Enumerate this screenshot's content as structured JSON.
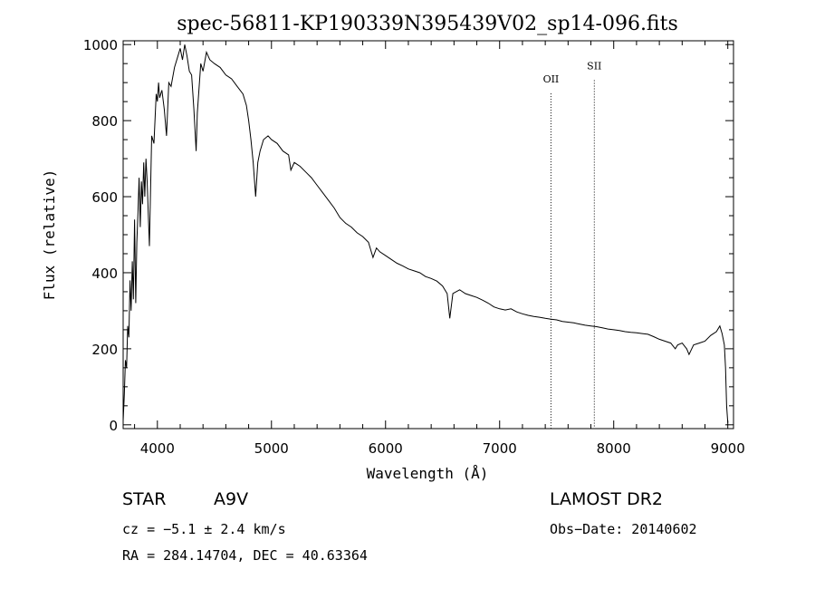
{
  "chart_data": {
    "type": "line",
    "title": "spec-56811-KP190339N395439V02_sp14-096.fits",
    "xlabel": "Wavelength (Å)",
    "ylabel": "Flux (relative)",
    "xlim": [
      3700,
      9050
    ],
    "ylim": [
      -10,
      1010
    ],
    "xticks": [
      4000,
      5000,
      6000,
      7000,
      8000,
      9000
    ],
    "yticks": [
      0,
      200,
      400,
      600,
      800,
      1000
    ],
    "grid": false,
    "series": [
      {
        "values": [
          [
            3700,
            10
          ],
          [
            3710,
            80
          ],
          [
            3720,
            170
          ],
          [
            3730,
            150
          ],
          [
            3740,
            260
          ],
          [
            3750,
            230
          ],
          [
            3760,
            380
          ],
          [
            3770,
            300
          ],
          [
            3780,
            430
          ],
          [
            3790,
            330
          ],
          [
            3800,
            540
          ],
          [
            3810,
            320
          ],
          [
            3820,
            480
          ],
          [
            3830,
            560
          ],
          [
            3840,
            650
          ],
          [
            3850,
            520
          ],
          [
            3860,
            640
          ],
          [
            3870,
            580
          ],
          [
            3880,
            690
          ],
          [
            3890,
            600
          ],
          [
            3900,
            700
          ],
          [
            3910,
            640
          ],
          [
            3930,
            470
          ],
          [
            3950,
            760
          ],
          [
            3970,
            740
          ],
          [
            3990,
            870
          ],
          [
            4000,
            850
          ],
          [
            4010,
            900
          ],
          [
            4020,
            860
          ],
          [
            4040,
            880
          ],
          [
            4060,
            830
          ],
          [
            4080,
            760
          ],
          [
            4100,
            900
          ],
          [
            4120,
            890
          ],
          [
            4150,
            940
          ],
          [
            4180,
            970
          ],
          [
            4200,
            990
          ],
          [
            4220,
            960
          ],
          [
            4240,
            1000
          ],
          [
            4260,
            970
          ],
          [
            4280,
            930
          ],
          [
            4300,
            920
          ],
          [
            4320,
            830
          ],
          [
            4340,
            720
          ],
          [
            4350,
            820
          ],
          [
            4380,
            950
          ],
          [
            4400,
            930
          ],
          [
            4430,
            980
          ],
          [
            4460,
            960
          ],
          [
            4500,
            950
          ],
          [
            4550,
            940
          ],
          [
            4600,
            920
          ],
          [
            4650,
            910
          ],
          [
            4700,
            890
          ],
          [
            4750,
            870
          ],
          [
            4780,
            840
          ],
          [
            4800,
            800
          ],
          [
            4820,
            750
          ],
          [
            4840,
            690
          ],
          [
            4861,
            600
          ],
          [
            4880,
            690
          ],
          [
            4900,
            720
          ],
          [
            4930,
            750
          ],
          [
            4970,
            760
          ],
          [
            5000,
            750
          ],
          [
            5050,
            740
          ],
          [
            5100,
            720
          ],
          [
            5150,
            710
          ],
          [
            5170,
            670
          ],
          [
            5200,
            690
          ],
          [
            5250,
            680
          ],
          [
            5300,
            665
          ],
          [
            5350,
            650
          ],
          [
            5400,
            630
          ],
          [
            5450,
            610
          ],
          [
            5500,
            590
          ],
          [
            5550,
            570
          ],
          [
            5600,
            545
          ],
          [
            5650,
            530
          ],
          [
            5700,
            520
          ],
          [
            5750,
            505
          ],
          [
            5800,
            495
          ],
          [
            5850,
            480
          ],
          [
            5890,
            440
          ],
          [
            5920,
            465
          ],
          [
            5950,
            455
          ],
          [
            6000,
            445
          ],
          [
            6050,
            435
          ],
          [
            6100,
            425
          ],
          [
            6150,
            418
          ],
          [
            6200,
            410
          ],
          [
            6250,
            405
          ],
          [
            6300,
            400
          ],
          [
            6350,
            390
          ],
          [
            6400,
            385
          ],
          [
            6450,
            378
          ],
          [
            6500,
            365
          ],
          [
            6540,
            345
          ],
          [
            6563,
            280
          ],
          [
            6590,
            345
          ],
          [
            6650,
            355
          ],
          [
            6700,
            345
          ],
          [
            6750,
            340
          ],
          [
            6800,
            335
          ],
          [
            6850,
            328
          ],
          [
            6900,
            320
          ],
          [
            6950,
            310
          ],
          [
            7000,
            305
          ],
          [
            7050,
            302
          ],
          [
            7100,
            305
          ],
          [
            7150,
            297
          ],
          [
            7200,
            292
          ],
          [
            7250,
            288
          ],
          [
            7300,
            285
          ],
          [
            7350,
            283
          ],
          [
            7400,
            280
          ],
          [
            7450,
            278
          ],
          [
            7500,
            276
          ],
          [
            7550,
            272
          ],
          [
            7600,
            270
          ],
          [
            7650,
            268
          ],
          [
            7700,
            265
          ],
          [
            7750,
            262
          ],
          [
            7800,
            260
          ],
          [
            7850,
            258
          ],
          [
            7900,
            255
          ],
          [
            7950,
            252
          ],
          [
            8000,
            250
          ],
          [
            8050,
            248
          ],
          [
            8100,
            245
          ],
          [
            8150,
            243
          ],
          [
            8200,
            242
          ],
          [
            8250,
            240
          ],
          [
            8300,
            238
          ],
          [
            8350,
            232
          ],
          [
            8400,
            225
          ],
          [
            8450,
            220
          ],
          [
            8500,
            215
          ],
          [
            8540,
            200
          ],
          [
            8560,
            210
          ],
          [
            8600,
            215
          ],
          [
            8640,
            200
          ],
          [
            8660,
            185
          ],
          [
            8700,
            210
          ],
          [
            8750,
            215
          ],
          [
            8800,
            220
          ],
          [
            8850,
            235
          ],
          [
            8900,
            245
          ],
          [
            8930,
            260
          ],
          [
            8950,
            240
          ],
          [
            8970,
            210
          ],
          [
            8980,
            150
          ],
          [
            8990,
            50
          ],
          [
            9000,
            5
          ]
        ]
      }
    ],
    "annotations": [
      {
        "label": "OII",
        "x": 7450,
        "y_label": 900
      },
      {
        "label": "SII",
        "x": 7830,
        "y_label": 935
      }
    ]
  },
  "info": {
    "object_class": "STAR",
    "subclass": "A9V",
    "survey": "LAMOST DR2",
    "cz": "cz = −5.1 ± 2.4 km/s",
    "obs_date": "Obs−Date: 20140602",
    "coords": "RA = 284.14704, DEC =  40.63364"
  }
}
